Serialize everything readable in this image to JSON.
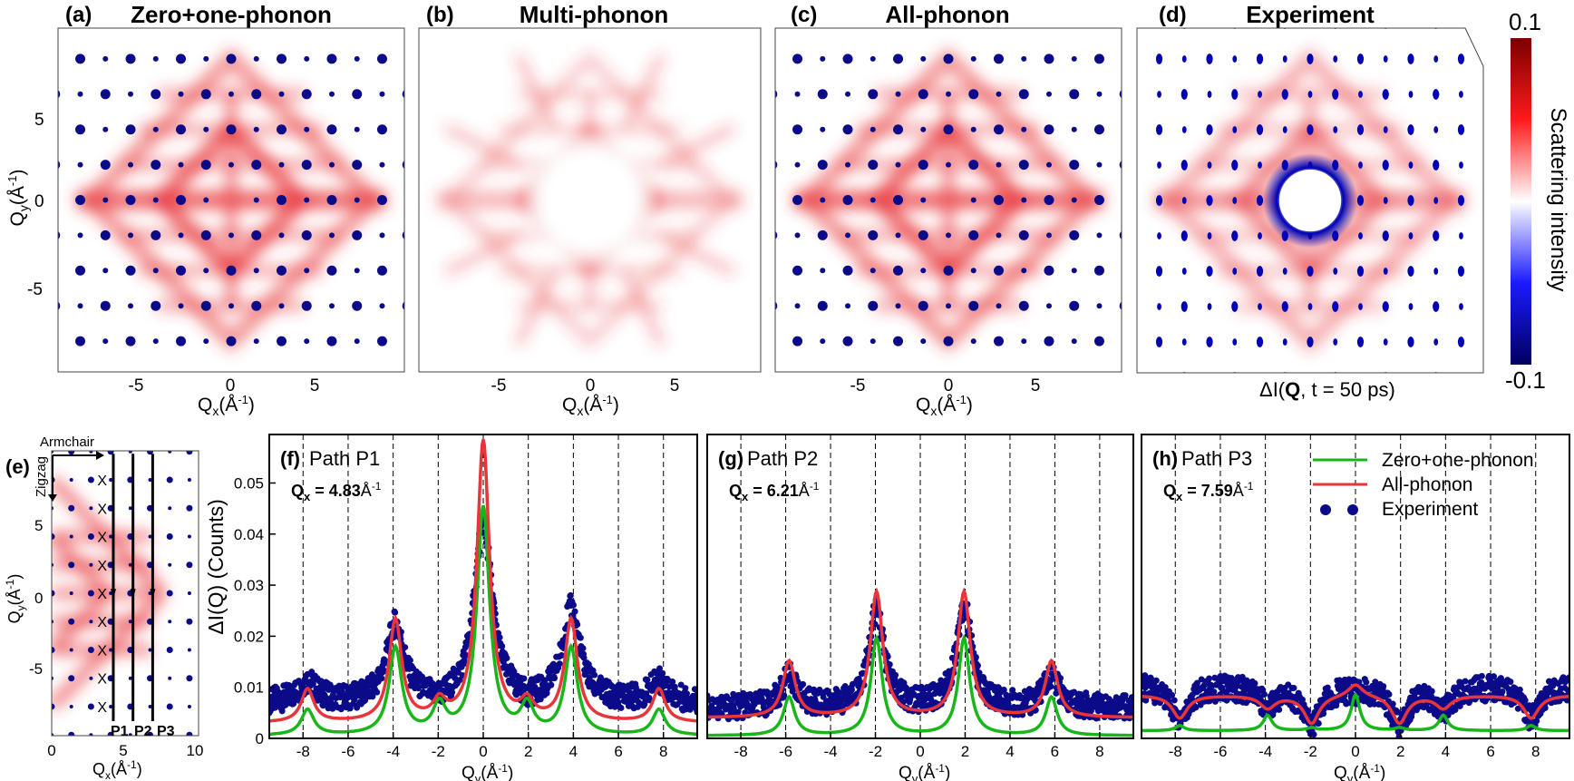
{
  "colors": {
    "red": "#e8353a",
    "green": "#19b619",
    "navy": "#0b0b8a",
    "dark_red": "#7a0000",
    "white": "#ffffff",
    "blue": "#0000b4",
    "dark_blue": "#00005e"
  },
  "maps": {
    "a": {
      "tag": "(a)",
      "title": "Zero+one-phonon",
      "mode": "zero_one"
    },
    "b": {
      "tag": "(b)",
      "title": "Multi-phonon",
      "mode": "multi"
    },
    "c": {
      "tag": "(c)",
      "title": "All-phonon",
      "mode": "all"
    },
    "d": {
      "tag": "(d)",
      "title": "Experiment",
      "mode": "experiment"
    },
    "x_ticks": [
      "-5",
      "0",
      "5"
    ],
    "y_ticks": [
      "5",
      "0",
      "-5"
    ],
    "qx_label": "Q",
    "qx_sub": "x",
    "qx_unit": "(Å",
    "inv": "-1",
    "close": ")",
    "qy_label": "Q",
    "qy_sub": "y",
    "experiment_caption_pre": "ΔI(",
    "experiment_caption_bold": "Q",
    "experiment_caption_post": ", t = 50 ps)"
  },
  "colorbar": {
    "max_label": "0.1",
    "min_label": "-0.1",
    "label": "Scattering intensity",
    "vmin": -0.1,
    "vmax": 0.1
  },
  "panel_e": {
    "tag": "(e)",
    "armchair": "Armchair",
    "zigzag": "Zigzag",
    "path_labels": [
      "P1",
      "P2",
      "P3"
    ],
    "x_ticks": [
      "0",
      "5",
      "10"
    ],
    "y_ticks": [
      "5",
      "0",
      "-5"
    ],
    "marker": "X",
    "path_qx": [
      4.83,
      6.21,
      7.59
    ]
  },
  "chart_data": [
    {
      "type": "line",
      "panel": "(f)",
      "title": "Path P1",
      "qx_label": "Q",
      "qx_sub": "x",
      "qx_value": "= 4.83",
      "qx_unit": "Å",
      "qx_exp": "-1",
      "xlabel": "Qy(Å-1)",
      "ylabel": "ΔI(Q) (Counts)",
      "xlim": [
        -9.5,
        9.5
      ],
      "ylim": [
        0,
        0.0595
      ],
      "xticks": [
        -8,
        -6,
        -4,
        -2,
        0,
        2,
        4,
        6,
        8
      ],
      "yticks": [
        0,
        0.01,
        0.02,
        0.03,
        0.04,
        0.05
      ],
      "ytick_labels": [
        "0",
        "0.01",
        "0.02",
        "0.03",
        "0.04",
        "0.05"
      ],
      "series": [
        {
          "name": "Zero+one-phonon",
          "peaks": [
            [
              -7.8,
              0.0055
            ],
            [
              -3.9,
              0.0175
            ],
            [
              -1.95,
              0.006
            ],
            [
              0,
              0.045
            ],
            [
              1.95,
              0.006
            ],
            [
              3.9,
              0.0175
            ],
            [
              7.8,
              0.0055
            ]
          ],
          "width": 0.5,
          "baseline": 0.0005
        },
        {
          "name": "All-phonon",
          "peaks": [
            [
              -7.8,
              0.0095
            ],
            [
              -3.9,
              0.023
            ],
            [
              -1.95,
              0.0065
            ],
            [
              0,
              0.058
            ],
            [
              1.95,
              0.0065
            ],
            [
              3.9,
              0.023
            ],
            [
              7.8,
              0.0095
            ]
          ],
          "width": 0.5,
          "baseline": 0.003
        },
        {
          "name": "Experiment",
          "peaks": [
            [
              -7.8,
              0.011
            ],
            [
              -3.9,
              0.022
            ],
            [
              -1.95,
              0.006
            ],
            [
              0,
              0.042
            ],
            [
              1.95,
              0.006
            ],
            [
              3.9,
              0.025
            ],
            [
              7.8,
              0.011
            ]
          ],
          "width": 0.7,
          "baseline": 0.007
        }
      ]
    },
    {
      "type": "line",
      "panel": "(g)",
      "title": "Path P2",
      "qx_label": "Q",
      "qx_sub": "x",
      "qx_value": "= 6.21",
      "qx_unit": "Å",
      "qx_exp": "-1",
      "xlabel": "Qy(Å-1)",
      "xlim": [
        -9.5,
        9.5
      ],
      "ylim": [
        0,
        0.0595
      ],
      "xticks": [
        -8,
        -6,
        -4,
        -2,
        0,
        2,
        4,
        6,
        8
      ],
      "series": [
        {
          "name": "Zero+one-phonon",
          "peaks": [
            [
              -5.85,
              0.008
            ],
            [
              -1.95,
              0.0195
            ],
            [
              1.95,
              0.0195
            ],
            [
              5.85,
              0.008
            ]
          ],
          "width": 0.45,
          "baseline": 0.0005
        },
        {
          "name": "All-phonon",
          "peaks": [
            [
              -5.85,
              0.015
            ],
            [
              -1.95,
              0.0285
            ],
            [
              1.95,
              0.0285
            ],
            [
              5.85,
              0.015
            ]
          ],
          "width": 0.5,
          "baseline": 0.004
        },
        {
          "name": "Experiment",
          "peaks": [
            [
              -5.85,
              0.012
            ],
            [
              -1.95,
              0.025
            ],
            [
              1.95,
              0.026
            ],
            [
              5.85,
              0.012
            ]
          ],
          "width": 0.6,
          "baseline": 0.006
        }
      ]
    },
    {
      "type": "line",
      "panel": "(h)",
      "title": "Path P3",
      "qx_label": "Q",
      "qx_sub": "x",
      "qx_value": "= 7.59",
      "qx_unit": "Å",
      "qx_exp": "-1",
      "xlabel": "Qy(Å-1)",
      "xlim": [
        -9.5,
        9.5
      ],
      "ylim": [
        0,
        0.0595
      ],
      "xticks": [
        -8,
        -6,
        -4,
        -2,
        0,
        2,
        4,
        6,
        8
      ],
      "legend": [
        "Zero+one-phonon",
        "All-phonon",
        "Experiment"
      ],
      "series": [
        {
          "name": "Zero+one-phonon",
          "peaks": [
            [
              -7.8,
              0.0025
            ],
            [
              -3.9,
              0.0045
            ],
            [
              -1.95,
              0.002
            ],
            [
              0,
              0.0085
            ],
            [
              1.95,
              0.002
            ],
            [
              3.9,
              0.0045
            ],
            [
              7.8,
              0.0025
            ]
          ],
          "width": 0.35,
          "baseline": 0.0015
        },
        {
          "name": "All-phonon",
          "peaks": [
            [
              -7.8,
              0.004
            ],
            [
              -3.9,
              0.006
            ],
            [
              -1.95,
              0.003
            ],
            [
              0,
              0.011
            ],
            [
              1.95,
              0.003
            ],
            [
              3.9,
              0.006
            ],
            [
              7.8,
              0.004
            ]
          ],
          "width": 0.6,
          "baseline": 0.0085
        },
        {
          "name": "Experiment",
          "peaks": [
            [
              -7.8,
              0.004
            ],
            [
              -3.9,
              0.007
            ],
            [
              -1.95,
              0.003
            ],
            [
              0,
              0.01
            ],
            [
              1.95,
              0.003
            ],
            [
              3.9,
              0.006
            ],
            [
              7.8,
              0.004
            ]
          ],
          "width": 0.7,
          "baseline": 0.0105
        }
      ]
    }
  ]
}
